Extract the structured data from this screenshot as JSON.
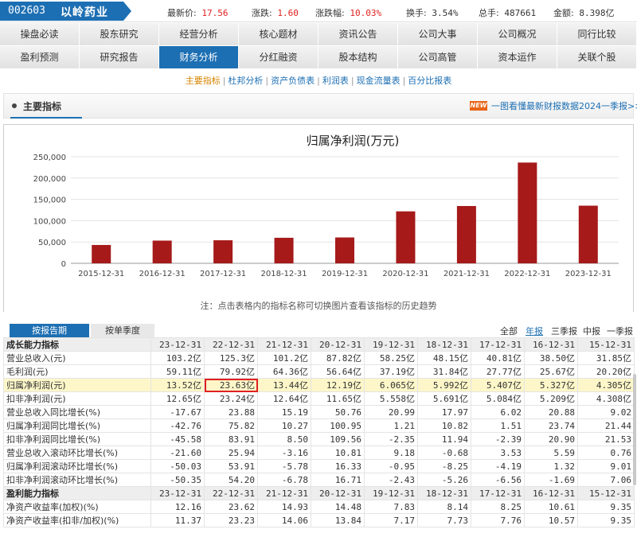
{
  "stock": {
    "code": "002603",
    "name": "以岭药业"
  },
  "quotes": [
    {
      "label": "最新价:",
      "value": "17.56",
      "red": true
    },
    {
      "label": "涨跌:",
      "value": "1.60",
      "red": true
    },
    {
      "label": "涨跌幅:",
      "value": "10.03%",
      "red": true
    },
    {
      "label": "换手:",
      "value": "3.54%",
      "red": false
    },
    {
      "label": "总手:",
      "value": "487661",
      "red": false
    },
    {
      "label": "金额:",
      "value": "8.398亿",
      "red": false
    }
  ],
  "nav": {
    "row1": [
      "操盘必读",
      "股东研究",
      "经营分析",
      "核心题材",
      "资讯公告",
      "公司大事",
      "公司概况",
      "同行比较"
    ],
    "row2": [
      "盈利预测",
      "研究报告",
      "财务分析",
      "分红融资",
      "股本结构",
      "公司高管",
      "资本运作",
      "关联个股"
    ],
    "active": "财务分析"
  },
  "subnav": [
    "主要指标",
    "杜邦分析",
    "资产负债表",
    "利润表",
    "现金流量表",
    "百分比报表"
  ],
  "subnav_active": "主要指标",
  "section": {
    "title": "主要指标",
    "new_badge": "NEW",
    "promo": "一图看懂最新财报数据2024一季报>>"
  },
  "chart_data": {
    "type": "bar",
    "title": "归属净利润(万元)",
    "categories": [
      "2015-12-31",
      "2016-12-31",
      "2017-12-31",
      "2018-12-31",
      "2019-12-31",
      "2020-12-31",
      "2021-12-31",
      "2022-12-31",
      "2023-12-31"
    ],
    "values": [
      43050,
      53270,
      54070,
      59920,
      60650,
      121900,
      134400,
      236300,
      135200
    ],
    "yticks": [
      "0",
      "50,000",
      "100,000",
      "150,000",
      "200,000",
      "250,000"
    ],
    "ylim": [
      0,
      250000
    ],
    "color": "#a61a1a",
    "grid": true
  },
  "note": "注：点击表格内的指标名称可切换图片查看该指标的历史趋势",
  "tabs": {
    "by_period": "按报告期",
    "by_quarter": "按单季度"
  },
  "periods": [
    "全部",
    "年报",
    "三季报",
    "中报",
    "一季报"
  ],
  "period_selected": "年报",
  "table": {
    "dates": [
      "23-12-31",
      "22-12-31",
      "21-12-31",
      "20-12-31",
      "19-12-31",
      "18-12-31",
      "17-12-31",
      "16-12-31",
      "15-12-31"
    ],
    "sections": [
      {
        "title": "成长能力指标",
        "rows": [
          {
            "label": "营业总收入(元)",
            "values": [
              "103.2亿",
              "125.3亿",
              "101.2亿",
              "87.82亿",
              "58.25亿",
              "48.15亿",
              "40.81亿",
              "38.50亿",
              "31.85亿"
            ]
          },
          {
            "label": "毛利润(元)",
            "values": [
              "59.11亿",
              "79.92亿",
              "64.36亿",
              "56.64亿",
              "37.19亿",
              "31.84亿",
              "27.77亿",
              "25.67亿",
              "20.20亿"
            ]
          },
          {
            "label": "归属净利润(元)",
            "values": [
              "13.52亿",
              "23.63亿",
              "13.44亿",
              "12.19亿",
              "6.065亿",
              "5.992亿",
              "5.407亿",
              "5.327亿",
              "4.305亿"
            ],
            "highlight": true
          },
          {
            "label": "扣非净利润(元)",
            "values": [
              "12.65亿",
              "23.24亿",
              "12.64亿",
              "11.65亿",
              "5.558亿",
              "5.691亿",
              "5.084亿",
              "5.209亿",
              "4.308亿"
            ]
          },
          {
            "label": "营业总收入同比增长(%)",
            "values": [
              "-17.67",
              "23.88",
              "15.19",
              "50.76",
              "20.99",
              "17.97",
              "6.02",
              "20.88",
              "9.02"
            ]
          },
          {
            "label": "归属净利润同比增长(%)",
            "values": [
              "-42.76",
              "75.82",
              "10.27",
              "100.95",
              "1.21",
              "10.82",
              "1.51",
              "23.74",
              "21.44"
            ]
          },
          {
            "label": "扣非净利润同比增长(%)",
            "values": [
              "-45.58",
              "83.91",
              "8.50",
              "109.56",
              "-2.35",
              "11.94",
              "-2.39",
              "20.90",
              "21.53"
            ]
          },
          {
            "label": "营业总收入滚动环比增长(%)",
            "values": [
              "-21.60",
              "25.94",
              "-3.16",
              "10.81",
              "9.18",
              "-0.68",
              "3.53",
              "5.59",
              "0.76"
            ]
          },
          {
            "label": "归属净利润滚动环比增长(%)",
            "values": [
              "-50.03",
              "53.91",
              "-5.78",
              "16.33",
              "-0.95",
              "-8.25",
              "-4.19",
              "1.32",
              "9.01"
            ]
          },
          {
            "label": "扣非净利润滚动环比增长(%)",
            "values": [
              "-50.35",
              "54.20",
              "-6.78",
              "16.71",
              "-2.43",
              "-5.26",
              "-6.56",
              "-1.69",
              "7.06"
            ]
          }
        ]
      },
      {
        "title": "盈利能力指标",
        "rows": [
          {
            "label": "净资产收益率(加权)(%)",
            "values": [
              "12.16",
              "23.62",
              "14.93",
              "14.48",
              "7.83",
              "8.14",
              "8.25",
              "10.61",
              "9.35"
            ]
          },
          {
            "label": "净资产收益率(扣非/加权)(%)",
            "values": [
              "11.37",
              "23.23",
              "14.06",
              "13.84",
              "7.17",
              "7.73",
              "7.76",
              "10.57",
              "9.35"
            ]
          }
        ]
      }
    ]
  }
}
